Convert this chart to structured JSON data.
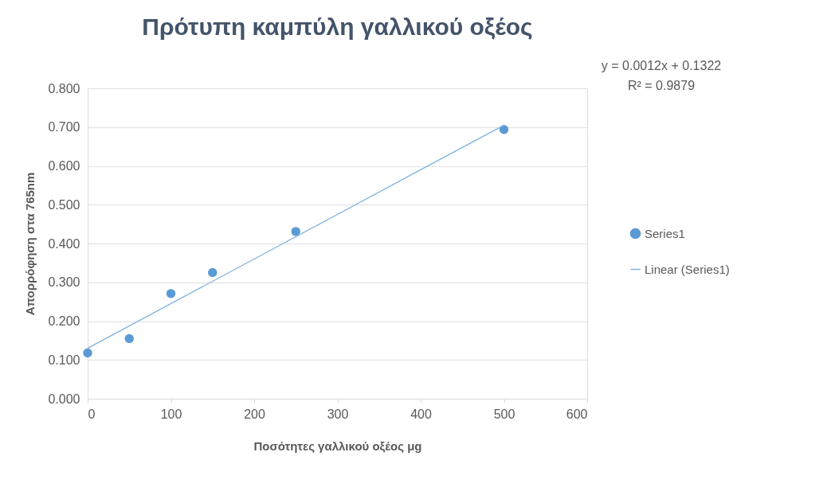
{
  "chart_data": {
    "type": "scatter",
    "title": "Πρότυπη καμπύλη γαλλικού οξέος",
    "xlabel": "Ποσότητες γαλλικού οξέος μg",
    "ylabel": "Απορρόφηση στα 765nm",
    "series": [
      {
        "name": "Series1",
        "color": "#5b9bd5",
        "x": [
          0,
          50,
          100,
          150,
          250,
          500
        ],
        "values": [
          0.118,
          0.155,
          0.271,
          0.325,
          0.431,
          0.694
        ],
        "marker": "circle"
      },
      {
        "name": "Linear (Series1)",
        "type": "line",
        "color": "#7fb2e0",
        "x": [
          0,
          500
        ],
        "values": [
          0.13,
          0.705
        ],
        "line_style": "solid"
      }
    ],
    "xlim": [
      0,
      600
    ],
    "xticks": [
      0,
      100,
      200,
      300,
      400,
      500,
      600
    ],
    "ylim": [
      0,
      0.8
    ],
    "yticks": [
      {
        "value": 0,
        "label": "0.000"
      },
      {
        "value": 0.1,
        "label": "0.100"
      },
      {
        "value": 0.2,
        "label": "0.200"
      },
      {
        "value": 0.3,
        "label": "0.300"
      },
      {
        "value": 0.4,
        "label": "0.400"
      },
      {
        "value": 0.5,
        "label": "0.500"
      },
      {
        "value": 0.6,
        "label": "0.600"
      },
      {
        "value": 0.7,
        "label": "0.700"
      },
      {
        "value": 0.8,
        "label": "0.800"
      }
    ],
    "grid": "y",
    "legend": "right",
    "annotations": [
      "y = 0.0012x + 0.1322",
      "R² = 0.9879"
    ]
  }
}
